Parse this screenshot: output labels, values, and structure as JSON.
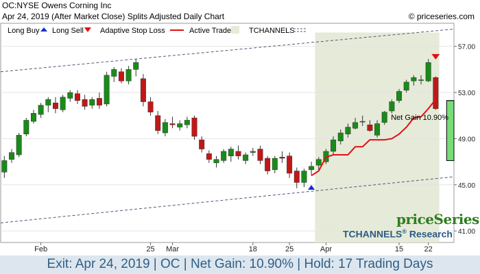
{
  "header": {
    "title": "OC:NYSE Owens Corning Inc",
    "subtitle": "Apr 24, 2019 (After Market Close)  Splits Adjusted Daily Chart",
    "copyright": "© priceseries.com"
  },
  "legend": {
    "long_buy": "Long Buy",
    "long_sell": "Long Sell",
    "adaptive_stop": "Adaptive Stop Loss",
    "active_trade": "Active Trade",
    "tchannels": "TCHANNELS"
  },
  "colors": {
    "up": "#1a8a1a",
    "down": "#c01818",
    "stop_line": "#e01010",
    "active_trade_bg": "#e6ead8",
    "gain_box": "#77dd77",
    "buy_marker": "#1030d0",
    "sell_marker": "#e01010",
    "channel": "#4a5a78",
    "footer_text": "#2f5f86"
  },
  "annotation": {
    "net_gain_label": "Net Gain 10.90%"
  },
  "brand": {
    "name": "priceSeries",
    "research": "TCHANNELS",
    "research_suffix": "Research",
    "reg": "®"
  },
  "footer": {
    "text": "Exit: Apr 24, 2019 | OC | Net Gain: 10.90% | Hold: 17 Trading Days"
  },
  "chart_data": {
    "type": "candlestick",
    "ylim": [
      40,
      59
    ],
    "yticks": [
      {
        "value": 41,
        "label": "41.00"
      },
      {
        "value": 45,
        "label": "45.00"
      },
      {
        "value": 49,
        "label": "49.00"
      },
      {
        "value": 53,
        "label": "53.00"
      },
      {
        "value": 57,
        "label": "57.00"
      }
    ],
    "xticks": [
      {
        "index": 5,
        "label": "Feb"
      },
      {
        "index": 20,
        "label": "25"
      },
      {
        "index": 23,
        "label": "Mar"
      },
      {
        "index": 34,
        "label": "18"
      },
      {
        "index": 39,
        "label": "25"
      },
      {
        "index": 44,
        "label": "Apr"
      },
      {
        "index": 54,
        "label": "15"
      },
      {
        "index": 58,
        "label": "22"
      }
    ],
    "candles": [
      {
        "o": 46.1,
        "h": 47.5,
        "l": 45.6,
        "c": 47.1
      },
      {
        "o": 47.2,
        "h": 48.1,
        "l": 46.9,
        "c": 47.8
      },
      {
        "o": 47.6,
        "h": 49.5,
        "l": 47.4,
        "c": 49.3
      },
      {
        "o": 49.4,
        "h": 50.8,
        "l": 49.2,
        "c": 50.6
      },
      {
        "o": 50.5,
        "h": 51.5,
        "l": 50.3,
        "c": 51.2
      },
      {
        "o": 51.1,
        "h": 52.1,
        "l": 50.8,
        "c": 51.9
      },
      {
        "o": 51.9,
        "h": 52.6,
        "l": 51.3,
        "c": 52.4
      },
      {
        "o": 52.1,
        "h": 52.6,
        "l": 51.2,
        "c": 51.6
      },
      {
        "o": 51.5,
        "h": 52.8,
        "l": 51.3,
        "c": 52.6
      },
      {
        "o": 52.5,
        "h": 53.2,
        "l": 52.2,
        "c": 53.0
      },
      {
        "o": 52.9,
        "h": 53.2,
        "l": 52.0,
        "c": 52.3
      },
      {
        "o": 52.4,
        "h": 52.8,
        "l": 51.5,
        "c": 51.8
      },
      {
        "o": 51.9,
        "h": 52.6,
        "l": 51.6,
        "c": 52.4
      },
      {
        "o": 52.5,
        "h": 53.0,
        "l": 51.6,
        "c": 51.9
      },
      {
        "o": 52.0,
        "h": 54.8,
        "l": 51.8,
        "c": 54.5
      },
      {
        "o": 54.4,
        "h": 55.2,
        "l": 53.9,
        "c": 55.0
      },
      {
        "o": 54.8,
        "h": 55.1,
        "l": 53.8,
        "c": 54.0
      },
      {
        "o": 54.0,
        "h": 55.3,
        "l": 53.7,
        "c": 55.0
      },
      {
        "o": 55.0,
        "h": 55.9,
        "l": 54.4,
        "c": 55.6
      },
      {
        "o": 54.2,
        "h": 54.6,
        "l": 51.8,
        "c": 52.2
      },
      {
        "o": 52.2,
        "h": 52.6,
        "l": 51.0,
        "c": 51.3
      },
      {
        "o": 51.0,
        "h": 51.4,
        "l": 49.4,
        "c": 49.7
      },
      {
        "o": 49.5,
        "h": 50.7,
        "l": 49.2,
        "c": 50.4
      },
      {
        "o": 50.3,
        "h": 50.9,
        "l": 49.9,
        "c": 50.2
      },
      {
        "o": 50.0,
        "h": 50.6,
        "l": 49.7,
        "c": 50.3
      },
      {
        "o": 50.2,
        "h": 50.9,
        "l": 49.9,
        "c": 50.6
      },
      {
        "o": 50.8,
        "h": 51.0,
        "l": 48.9,
        "c": 49.2
      },
      {
        "o": 48.9,
        "h": 49.2,
        "l": 47.8,
        "c": 48.1
      },
      {
        "o": 47.7,
        "h": 48.0,
        "l": 46.9,
        "c": 47.2
      },
      {
        "o": 46.9,
        "h": 47.5,
        "l": 46.5,
        "c": 47.2
      },
      {
        "o": 47.1,
        "h": 48.1,
        "l": 46.9,
        "c": 47.9
      },
      {
        "o": 47.5,
        "h": 48.3,
        "l": 47.0,
        "c": 48.1
      },
      {
        "o": 47.9,
        "h": 48.4,
        "l": 47.2,
        "c": 47.5
      },
      {
        "o": 47.1,
        "h": 47.8,
        "l": 46.8,
        "c": 47.6
      },
      {
        "o": 47.8,
        "h": 48.2,
        "l": 47.5,
        "c": 47.9
      },
      {
        "o": 48.1,
        "h": 48.4,
        "l": 46.8,
        "c": 47.1
      },
      {
        "o": 47.3,
        "h": 47.5,
        "l": 45.9,
        "c": 46.2
      },
      {
        "o": 46.3,
        "h": 47.5,
        "l": 46.0,
        "c": 47.3
      },
      {
        "o": 47.4,
        "h": 47.9,
        "l": 46.9,
        "c": 47.3
      },
      {
        "o": 47.5,
        "h": 47.8,
        "l": 45.6,
        "c": 46.0
      },
      {
        "o": 46.2,
        "h": 46.5,
        "l": 44.7,
        "c": 45.2
      },
      {
        "o": 45.2,
        "h": 46.4,
        "l": 44.8,
        "c": 46.2
      },
      {
        "o": 46.3,
        "h": 47.0,
        "l": 45.8,
        "c": 46.6
      },
      {
        "o": 46.7,
        "h": 47.4,
        "l": 46.2,
        "c": 47.2
      },
      {
        "o": 47.0,
        "h": 48.1,
        "l": 46.8,
        "c": 47.9
      },
      {
        "o": 47.9,
        "h": 49.2,
        "l": 47.6,
        "c": 48.9
      },
      {
        "o": 48.8,
        "h": 49.8,
        "l": 48.5,
        "c": 49.5
      },
      {
        "o": 49.4,
        "h": 50.3,
        "l": 49.1,
        "c": 50.0
      },
      {
        "o": 49.9,
        "h": 50.8,
        "l": 49.8,
        "c": 50.4
      },
      {
        "o": 50.5,
        "h": 51.0,
        "l": 50.1,
        "c": 50.5
      },
      {
        "o": 50.2,
        "h": 50.6,
        "l": 49.6,
        "c": 49.7
      },
      {
        "o": 49.3,
        "h": 50.6,
        "l": 49.1,
        "c": 50.3
      },
      {
        "o": 50.4,
        "h": 51.4,
        "l": 50.2,
        "c": 51.3
      },
      {
        "o": 51.4,
        "h": 52.4,
        "l": 51.2,
        "c": 52.2
      },
      {
        "o": 52.3,
        "h": 53.3,
        "l": 52.1,
        "c": 53.1
      },
      {
        "o": 53.2,
        "h": 54.1,
        "l": 53.0,
        "c": 53.9
      },
      {
        "o": 54.0,
        "h": 54.5,
        "l": 53.6,
        "c": 54.3
      },
      {
        "o": 54.1,
        "h": 54.5,
        "l": 53.7,
        "c": 54.1
      },
      {
        "o": 54.0,
        "h": 55.9,
        "l": 53.9,
        "c": 55.6
      },
      {
        "o": 54.3,
        "h": 54.4,
        "l": 51.5,
        "c": 51.6
      }
    ],
    "stop_loss": [
      {
        "i": 42,
        "v": 45.8
      },
      {
        "i": 43,
        "v": 46.2
      },
      {
        "i": 44,
        "v": 47.4
      },
      {
        "i": 45,
        "v": 47.6
      },
      {
        "i": 46,
        "v": 47.6
      },
      {
        "i": 47,
        "v": 47.6
      },
      {
        "i": 48,
        "v": 48.3
      },
      {
        "i": 49,
        "v": 48.3
      },
      {
        "i": 50,
        "v": 48.9
      },
      {
        "i": 51,
        "v": 48.9
      },
      {
        "i": 52,
        "v": 48.9
      },
      {
        "i": 53,
        "v": 49.0
      },
      {
        "i": 54,
        "v": 49.4
      },
      {
        "i": 55,
        "v": 50.0
      },
      {
        "i": 56,
        "v": 50.8
      },
      {
        "i": 57,
        "v": 50.9
      },
      {
        "i": 58,
        "v": 51.6
      },
      {
        "i": 59,
        "v": 52.4
      }
    ],
    "channel_upper": [
      {
        "i": -0.5,
        "v": 54.8
      },
      {
        "i": 61.5,
        "v": 58.5
      }
    ],
    "channel_lower": [
      {
        "i": -0.5,
        "v": 41.7
      },
      {
        "i": 61.5,
        "v": 45.7
      }
    ],
    "active_trade": {
      "start": 42.5,
      "end": 59.5
    },
    "buy_marker": {
      "i": 42,
      "v": 44.75
    },
    "sell_marker": {
      "i": 59,
      "v": 56.1
    },
    "gain_box": {
      "low": 47.1,
      "high": 52.3
    }
  }
}
